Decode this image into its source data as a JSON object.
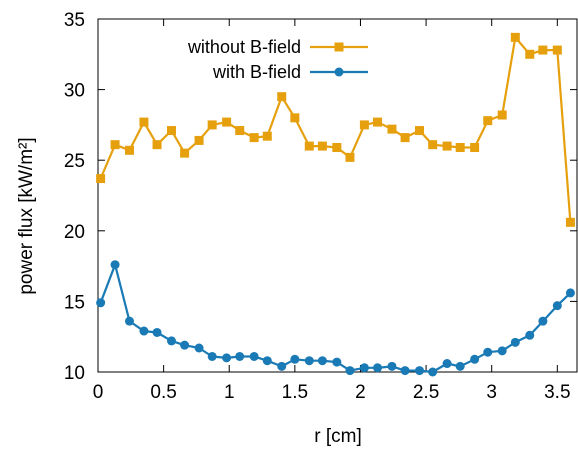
{
  "chart_data": {
    "type": "line",
    "title": "",
    "xlabel": "r [cm]",
    "ylabel": "power flux [kW/m²]",
    "xlim": [
      0,
      3.65
    ],
    "ylim": [
      10,
      35
    ],
    "xticks": [
      0,
      0.5,
      1,
      1.5,
      2,
      2.5,
      3,
      3.5
    ],
    "xtick_labels": [
      "0",
      "0.5",
      "1",
      "1.5",
      "2",
      "2.5",
      "3",
      "3.5"
    ],
    "yticks": [
      10,
      15,
      20,
      25,
      30,
      35
    ],
    "ytick_labels": [
      "10",
      "15",
      "20",
      "25",
      "30",
      "35"
    ],
    "legend": "top-left",
    "grid": false,
    "series": [
      {
        "name": "without B-field",
        "color": "#e6a00e",
        "marker": "square",
        "x": [
          0.02,
          0.13,
          0.24,
          0.35,
          0.45,
          0.56,
          0.66,
          0.77,
          0.87,
          0.98,
          1.08,
          1.19,
          1.29,
          1.4,
          1.5,
          1.61,
          1.71,
          1.82,
          1.92,
          2.03,
          2.13,
          2.24,
          2.34,
          2.45,
          2.55,
          2.66,
          2.76,
          2.87,
          2.97,
          3.08,
          3.18,
          3.29,
          3.39,
          3.5,
          3.6
        ],
        "y": [
          23.7,
          26.1,
          25.7,
          27.7,
          26.1,
          27.1,
          25.5,
          26.4,
          27.5,
          27.7,
          27.1,
          26.6,
          26.7,
          29.5,
          28.0,
          26.0,
          26.0,
          25.9,
          25.2,
          27.5,
          27.7,
          27.2,
          26.6,
          27.1,
          26.1,
          26.0,
          25.9,
          25.9,
          27.8,
          28.2,
          33.7,
          32.5,
          32.8,
          32.8,
          20.6
        ]
      },
      {
        "name": "with B-field",
        "color": "#1a7ab5",
        "marker": "circle",
        "x": [
          0.02,
          0.13,
          0.24,
          0.35,
          0.45,
          0.56,
          0.66,
          0.77,
          0.87,
          0.98,
          1.08,
          1.19,
          1.29,
          1.4,
          1.5,
          1.61,
          1.71,
          1.82,
          1.92,
          2.03,
          2.13,
          2.24,
          2.34,
          2.45,
          2.55,
          2.66,
          2.76,
          2.87,
          2.97,
          3.08,
          3.18,
          3.29,
          3.39,
          3.5,
          3.6
        ],
        "y": [
          14.9,
          17.6,
          13.6,
          12.9,
          12.8,
          12.2,
          11.9,
          11.7,
          11.1,
          11.0,
          11.1,
          11.1,
          10.8,
          10.4,
          10.9,
          10.8,
          10.8,
          10.7,
          10.1,
          10.3,
          10.3,
          10.4,
          10.1,
          10.1,
          10.0,
          10.6,
          10.4,
          10.9,
          11.4,
          11.5,
          12.1,
          12.6,
          13.6,
          14.7,
          15.6
        ]
      }
    ]
  }
}
